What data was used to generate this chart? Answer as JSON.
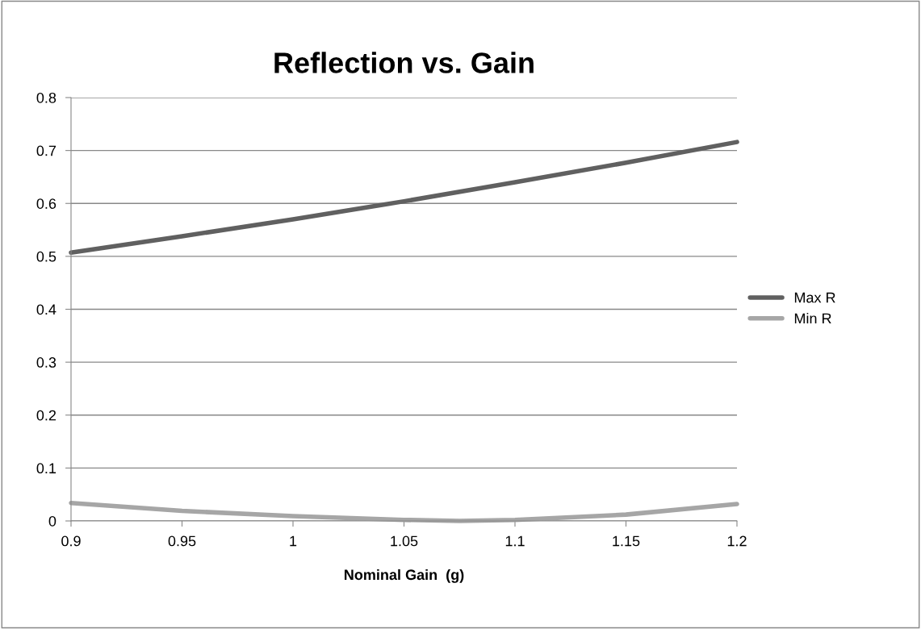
{
  "chart_data": {
    "type": "line",
    "title": "Reflection vs. Gain",
    "xlabel": "Nominal Gain  (g)",
    "xlim": [
      0.9,
      1.2
    ],
    "xticks": [
      {
        "value": 0.9,
        "label": "0.9"
      },
      {
        "value": 0.95,
        "label": "0.95"
      },
      {
        "value": 1.0,
        "label": "1"
      },
      {
        "value": 1.05,
        "label": "1.05"
      },
      {
        "value": 1.1,
        "label": "1.1"
      },
      {
        "value": 1.15,
        "label": "1.15"
      },
      {
        "value": 1.2,
        "label": "1.2"
      }
    ],
    "ylim": [
      0,
      0.8
    ],
    "yticks": [
      {
        "value": 0,
        "label": "0"
      },
      0.1,
      0.2,
      0.3,
      0.4,
      0.5,
      0.6,
      0.7,
      0.8
    ],
    "grid": "y",
    "legend": "right",
    "marker": "none",
    "line_style": "solid",
    "series": [
      {
        "name": "Max R",
        "color": "#606060",
        "x": [
          0.9,
          0.95,
          1.0,
          1.05,
          1.1,
          1.15,
          1.2
        ],
        "values": [
          0.507,
          0.538,
          0.57,
          0.604,
          0.64,
          0.677,
          0.716
        ]
      },
      {
        "name": "Min R",
        "color": "#a6a6a6",
        "x": [
          0.9,
          0.95,
          1.0,
          1.05,
          1.075,
          1.1,
          1.15,
          1.2
        ],
        "values": [
          0.034,
          0.019,
          0.009,
          0.002,
          0.0,
          0.002,
          0.012,
          0.032
        ]
      }
    ]
  }
}
